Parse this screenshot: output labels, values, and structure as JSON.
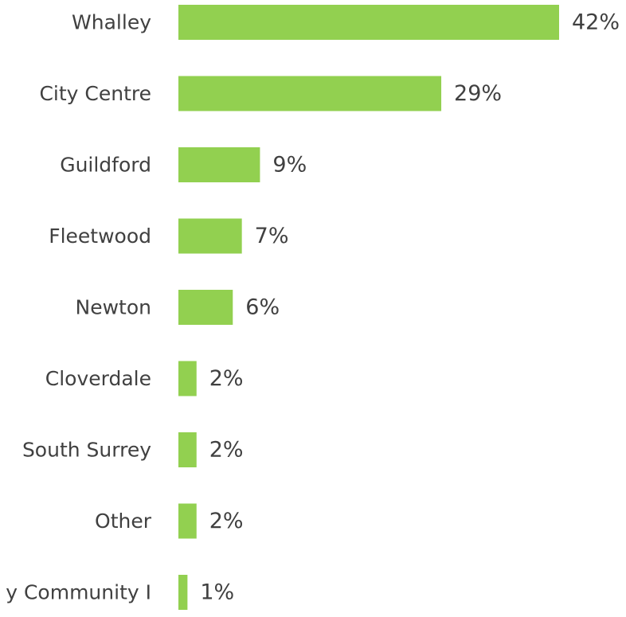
{
  "chart_data": {
    "type": "bar",
    "orientation": "horizontal",
    "categories": [
      "Whalley",
      "City Centre",
      "Guildford",
      "Fleetwood",
      "Newton",
      "Cloverdale",
      "South Surrey",
      "Other",
      "y Community I"
    ],
    "values": [
      42,
      29,
      9,
      7,
      6,
      2,
      2,
      2,
      1
    ],
    "value_labels": [
      "42%",
      "29%",
      "9%",
      "7%",
      "6%",
      "2%",
      "2%",
      "2%",
      "1%"
    ],
    "unit": "%",
    "title": "",
    "xlabel": "",
    "ylabel": "",
    "xlim": [
      0,
      42
    ],
    "grid": false,
    "legend": "none",
    "bar_color": "#92d050"
  }
}
